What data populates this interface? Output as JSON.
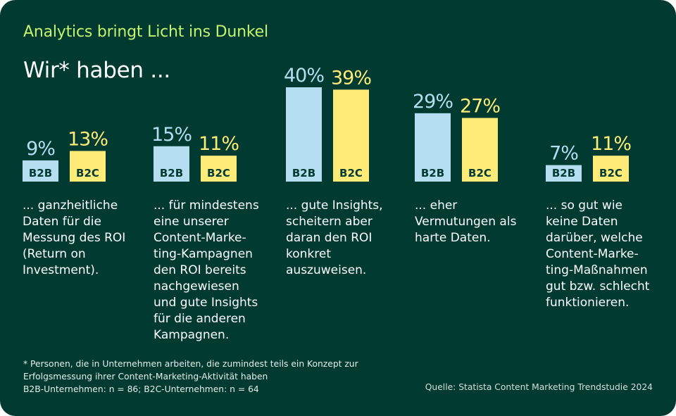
{
  "header": {
    "kicker": "Analytics bringt Licht ins Dunkel",
    "headline": "Wir* haben ..."
  },
  "colors": {
    "background": "#003a30",
    "kicker": "#c6f26d",
    "b2b": "#b5dff0",
    "b2c": "#ffeb78",
    "bar_label": "#003a30"
  },
  "chart_data": {
    "type": "bar",
    "title": "Analytics bringt Licht ins Dunkel",
    "subtitle": "Wir* haben ...",
    "unit": "%",
    "ylim": [
      0,
      40
    ],
    "grid": false,
    "categories": [
      "... ganzheitliche Daten für die Messung des ROI (Return on Investment).",
      "... für mindestens eine unserer Content-Marketing-Kampagnen den ROI bereits nachgewiesen und gute Insights für die anderen Kampagnen.",
      "... gute Insights, scheitern aber daran den ROI konkret auszuweisen.",
      "... eher Vermutungen als harte Daten.",
      "... so gut wie keine Daten darüber, welche Content-Marketing-Maßnahmen gut bzw. schlecht funktionieren."
    ],
    "category_lines": [
      "... ganzheitliche\nDaten für die\nMessung des ROI\n(Return on\nInvestment).",
      "... für mindestens\neine unserer\nContent-Marke-\nting-Kampagnen\nden ROI bereits\nnachgewiesen\nund gute Insights\nfür die anderen\nKampagnen.",
      "... gute Insights,\nscheitern aber\ndaran den ROI\nkonkret\nauszuweisen.",
      "... eher\nVermutungen als\nharte Daten.",
      "... so gut wie\nkeine Daten\ndarüber, welche\nContent-Marke-\nting-Maßnahmen\ngut bzw. schlecht\nfunktionieren."
    ],
    "series": [
      {
        "name": "B2B",
        "values": [
          9,
          15,
          40,
          29,
          7
        ],
        "labels": [
          "9%",
          "15%",
          "40%",
          "29%",
          "7%"
        ]
      },
      {
        "name": "B2C",
        "values": [
          13,
          11,
          39,
          27,
          11
        ],
        "labels": [
          "13%",
          "11%",
          "39%",
          "27%",
          "11%"
        ]
      }
    ]
  },
  "footer": {
    "footnote_line1": "* Personen, die in Unternehmen arbeiten, die zumindest teils ein Konzept zur",
    "footnote_line2": "Erfolgsmessung ihrer Content-Marketing-Aktivität haben",
    "sample": "B2B-Unternehmen: n = 86; B2C-Unternehmen: n = 64",
    "source": "Quelle: Statista Content Marketing Trendstudie 2024"
  }
}
